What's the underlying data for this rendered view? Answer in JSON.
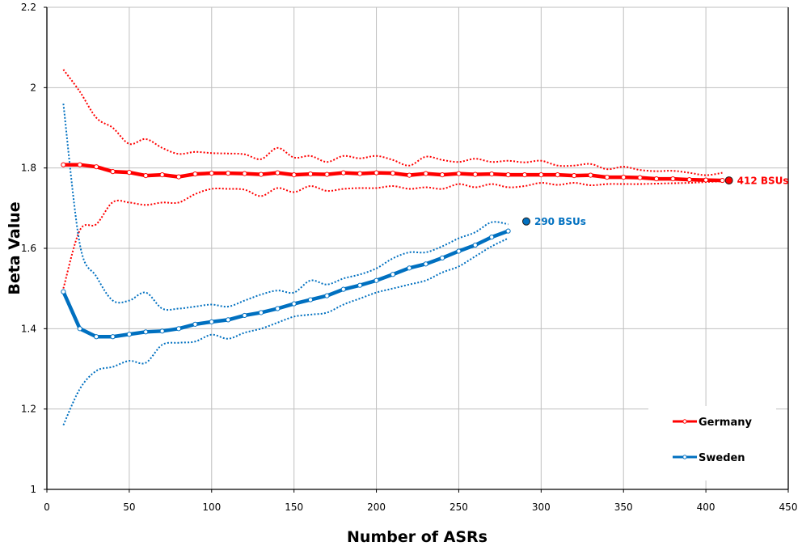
{
  "chart_data": {
    "type": "line",
    "title": "",
    "xlabel": "Number of ASRs",
    "ylabel": "Beta Value",
    "xlim": [
      0,
      450
    ],
    "ylim": [
      1,
      2.2
    ],
    "xticks": [
      0,
      50,
      100,
      150,
      200,
      250,
      300,
      350,
      400,
      450
    ],
    "yticks": [
      1,
      1.2,
      1.4,
      1.6,
      1.8,
      2,
      2.2
    ],
    "ytick_labels": [
      "1",
      "1.2",
      "1.4",
      "1.6",
      "1.8",
      "2",
      "2.2"
    ],
    "grid": true,
    "legend_position": "lower right",
    "series": [
      {
        "name": "Germany",
        "color": "#ff0000",
        "style": "solid-with-markers",
        "x": [
          10,
          20,
          30,
          40,
          50,
          60,
          70,
          80,
          90,
          100,
          110,
          120,
          130,
          140,
          150,
          160,
          170,
          180,
          190,
          200,
          210,
          220,
          230,
          240,
          250,
          260,
          270,
          280,
          290,
          300,
          310,
          320,
          330,
          340,
          350,
          360,
          370,
          380,
          390,
          400,
          410
        ],
        "values": [
          1.808,
          1.808,
          1.803,
          1.791,
          1.789,
          1.781,
          1.783,
          1.778,
          1.785,
          1.787,
          1.787,
          1.786,
          1.784,
          1.788,
          1.783,
          1.785,
          1.784,
          1.788,
          1.786,
          1.788,
          1.787,
          1.782,
          1.786,
          1.783,
          1.786,
          1.784,
          1.785,
          1.783,
          1.783,
          1.783,
          1.783,
          1.781,
          1.782,
          1.777,
          1.777,
          1.776,
          1.773,
          1.773,
          1.771,
          1.77,
          1.769
        ]
      },
      {
        "name": "Germany upper CI",
        "color": "#ff0000",
        "style": "dotted",
        "x": [
          10,
          20,
          30,
          40,
          50,
          60,
          70,
          80,
          90,
          100,
          110,
          120,
          130,
          140,
          150,
          160,
          170,
          180,
          190,
          200,
          210,
          220,
          230,
          240,
          250,
          260,
          270,
          280,
          290,
          300,
          310,
          320,
          330,
          340,
          350,
          360,
          370,
          380,
          390,
          400,
          410
        ],
        "values": [
          2.045,
          1.99,
          1.925,
          1.9,
          1.86,
          1.872,
          1.85,
          1.835,
          1.84,
          1.837,
          1.836,
          1.834,
          1.822,
          1.85,
          1.826,
          1.83,
          1.815,
          1.83,
          1.824,
          1.83,
          1.82,
          1.806,
          1.828,
          1.82,
          1.815,
          1.823,
          1.815,
          1.818,
          1.814,
          1.818,
          1.806,
          1.806,
          1.81,
          1.797,
          1.803,
          1.795,
          1.792,
          1.793,
          1.788,
          1.782,
          1.788
        ]
      },
      {
        "name": "Germany lower CI",
        "color": "#ff0000",
        "style": "dotted",
        "x": [
          10,
          20,
          30,
          40,
          50,
          60,
          70,
          80,
          90,
          100,
          110,
          120,
          130,
          140,
          150,
          160,
          170,
          180,
          190,
          200,
          210,
          220,
          230,
          240,
          250,
          260,
          270,
          280,
          290,
          300,
          310,
          320,
          330,
          340,
          350,
          360,
          370,
          380,
          390,
          400,
          410
        ],
        "values": [
          1.5,
          1.645,
          1.66,
          1.715,
          1.714,
          1.708,
          1.714,
          1.714,
          1.735,
          1.748,
          1.748,
          1.746,
          1.73,
          1.75,
          1.74,
          1.755,
          1.743,
          1.748,
          1.75,
          1.75,
          1.755,
          1.748,
          1.752,
          1.748,
          1.76,
          1.752,
          1.76,
          1.752,
          1.755,
          1.763,
          1.758,
          1.763,
          1.757,
          1.76,
          1.76,
          1.76,
          1.761,
          1.762,
          1.763,
          1.765,
          1.767
        ]
      },
      {
        "name": "Sweden",
        "color": "#0070c0",
        "style": "solid-with-markers",
        "x": [
          10,
          20,
          30,
          40,
          50,
          60,
          70,
          80,
          90,
          100,
          110,
          120,
          130,
          140,
          150,
          160,
          170,
          180,
          190,
          200,
          210,
          220,
          230,
          240,
          250,
          260,
          270,
          280
        ],
        "values": [
          1.492,
          1.4,
          1.38,
          1.38,
          1.386,
          1.392,
          1.394,
          1.4,
          1.411,
          1.417,
          1.422,
          1.433,
          1.44,
          1.45,
          1.462,
          1.472,
          1.482,
          1.498,
          1.508,
          1.52,
          1.535,
          1.551,
          1.561,
          1.576,
          1.593,
          1.608,
          1.628,
          1.643
        ]
      },
      {
        "name": "Sweden upper CI",
        "color": "#0070c0",
        "style": "dotted",
        "x": [
          10,
          20,
          30,
          40,
          50,
          60,
          70,
          80,
          90,
          100,
          110,
          120,
          130,
          140,
          150,
          160,
          170,
          180,
          190,
          200,
          210,
          220,
          230,
          240,
          250,
          260,
          270,
          280
        ],
        "values": [
          1.96,
          1.61,
          1.53,
          1.47,
          1.47,
          1.49,
          1.45,
          1.45,
          1.455,
          1.46,
          1.455,
          1.47,
          1.485,
          1.495,
          1.49,
          1.52,
          1.51,
          1.525,
          1.535,
          1.55,
          1.575,
          1.59,
          1.59,
          1.605,
          1.625,
          1.64,
          1.665,
          1.66
        ]
      },
      {
        "name": "Sweden lower CI",
        "color": "#0070c0",
        "style": "dotted",
        "x": [
          10,
          20,
          30,
          40,
          50,
          60,
          70,
          80,
          90,
          100,
          110,
          120,
          130,
          140,
          150,
          160,
          170,
          180,
          190,
          200,
          210,
          220,
          230,
          240,
          250,
          260,
          270,
          280
        ],
        "values": [
          1.16,
          1.25,
          1.295,
          1.305,
          1.32,
          1.315,
          1.36,
          1.365,
          1.368,
          1.385,
          1.375,
          1.39,
          1.4,
          1.415,
          1.43,
          1.435,
          1.44,
          1.46,
          1.475,
          1.49,
          1.5,
          1.51,
          1.52,
          1.54,
          1.555,
          1.58,
          1.605,
          1.625
        ]
      }
    ],
    "annotations": [
      {
        "text": "412 BSUs",
        "x": 414,
        "y": 1.769,
        "color": "#ff0000",
        "marker_color": "#ff0000"
      },
      {
        "text": "290 BSUs",
        "x": 291,
        "y": 1.667,
        "color": "#0070c0",
        "marker_color": "#0070c0"
      }
    ],
    "legend": [
      {
        "label": "Germany",
        "color": "#ff0000"
      },
      {
        "label": "Sweden",
        "color": "#0070c0"
      }
    ]
  },
  "colors": {
    "grid": "#bfbfbf",
    "axis": "#000000",
    "germany": "#ff0000",
    "sweden": "#0070c0"
  }
}
